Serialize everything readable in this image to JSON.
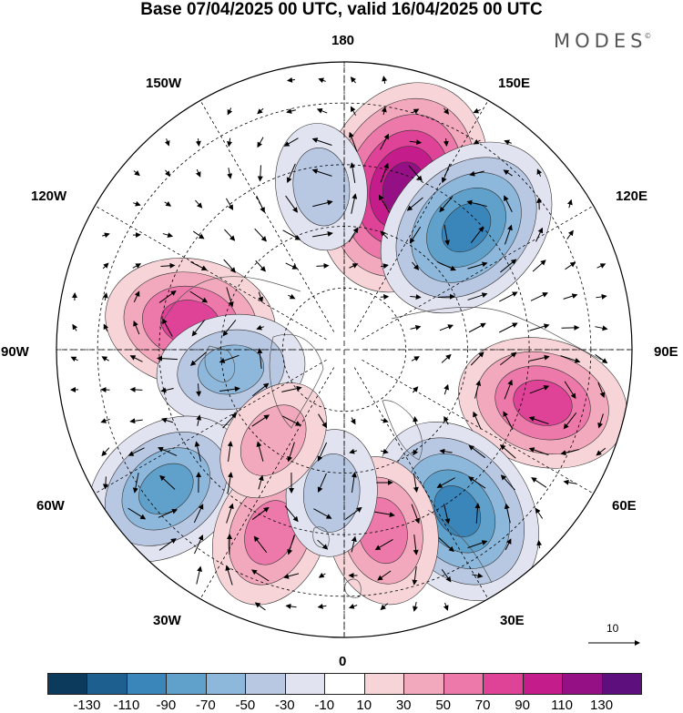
{
  "title": "Base 07/04/2025 00 UTC, valid 16/04/2025 00 UTC",
  "brand": "MODES",
  "brand_mark": "©",
  "meridian_labels": {
    "top": "180",
    "top_right": "150E",
    "upper_right": "120E",
    "right": "90E",
    "lower_right": "60E",
    "bottom_right": "30E",
    "bottom": "0",
    "bottom_left": "30W",
    "lower_left": "60W",
    "left": "90W",
    "upper_left": "120W",
    "top_left": "150W"
  },
  "vector_scale": {
    "label": "10",
    "icon": "arrow-right-icon"
  },
  "colorbar": {
    "colors": [
      "#0b3a5c",
      "#1d5f8e",
      "#3a86bb",
      "#5fa1cb",
      "#8eb8db",
      "#b8c8e2",
      "#e2e3f0",
      "#ffffff",
      "#f7d4d7",
      "#f2a9bd",
      "#ec79a9",
      "#df4397",
      "#c41c8a",
      "#961085",
      "#5e0f7e"
    ],
    "tick_labels": [
      "-130",
      "-110",
      "-90",
      "-70",
      "-50",
      "-30",
      "-10",
      "10",
      "30",
      "50",
      "70",
      "90",
      "110",
      "130"
    ]
  },
  "anomaly_centers": [
    {
      "name": "pink-150E",
      "lon": 160,
      "lat": 48,
      "value": 130
    },
    {
      "name": "blue-130E",
      "lon": 135,
      "lat": 48,
      "value": -100
    },
    {
      "name": "pink-100W",
      "lon": -100,
      "lat": 52,
      "value": 80
    },
    {
      "name": "blue-80W",
      "lon": -80,
      "lat": 62,
      "value": -70
    },
    {
      "name": "pink-75E",
      "lon": 75,
      "lat": 40,
      "value": 80
    },
    {
      "name": "blue-35E",
      "lon": 35,
      "lat": 42,
      "value": -100
    },
    {
      "name": "blue-55W",
      "lon": -52,
      "lat": 35,
      "value": -80
    },
    {
      "name": "pink-20W",
      "lon": -22,
      "lat": 42,
      "value": 70
    },
    {
      "name": "pink-10E",
      "lon": 12,
      "lat": 45,
      "value": 70
    },
    {
      "name": "blue-5W",
      "lon": -5,
      "lat": 55,
      "value": -40
    },
    {
      "name": "pink-40W",
      "lon": -38,
      "lat": 62,
      "value": 50
    },
    {
      "name": "blue-175W",
      "lon": -172,
      "lat": 50,
      "value": -40
    }
  ]
}
